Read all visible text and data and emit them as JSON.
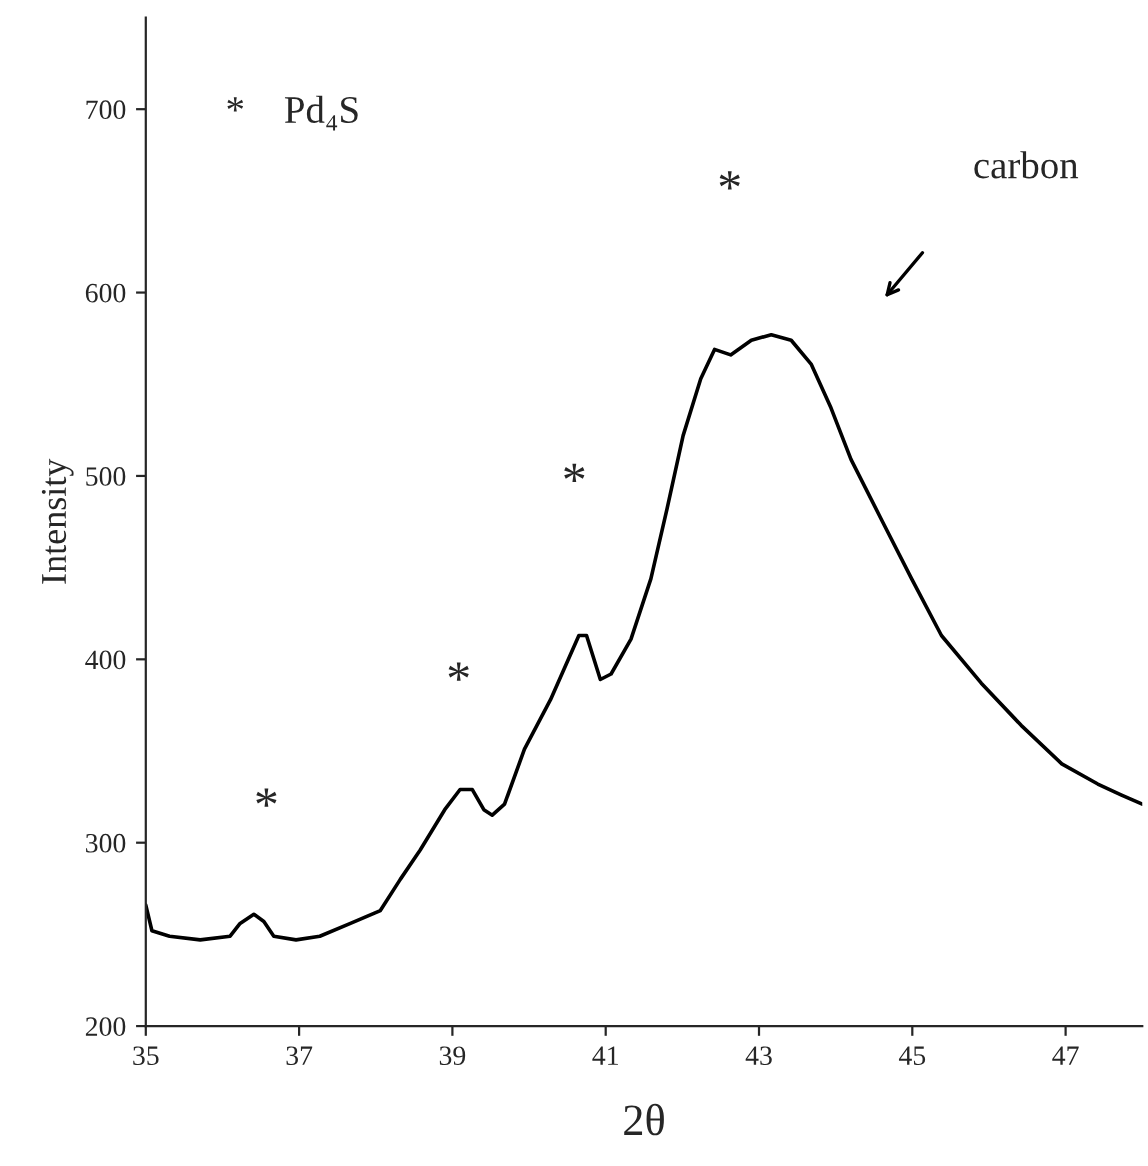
{
  "chart_data": {
    "type": "line",
    "xlabel": "2θ",
    "ylabel": "Intensity",
    "x": [
      35.0,
      35.08,
      35.31,
      35.71,
      36.1,
      36.23,
      36.41,
      36.54,
      36.67,
      36.96,
      37.27,
      37.67,
      38.06,
      38.32,
      38.58,
      38.9,
      39.1,
      39.26,
      39.41,
      39.52,
      39.68,
      39.94,
      40.28,
      40.46,
      40.65,
      40.75,
      40.93,
      41.07,
      41.33,
      41.59,
      41.8,
      42.01,
      42.24,
      42.42,
      42.63,
      42.9,
      43.16,
      43.42,
      43.68,
      43.94,
      44.2,
      44.6,
      44.99,
      45.38,
      45.9,
      46.42,
      46.95,
      47.42,
      47.73,
      48.0
    ],
    "series": [
      {
        "color": "#000000",
        "values": [
          266,
          252,
          249,
          247,
          249,
          256,
          261,
          257,
          249,
          247,
          249,
          256,
          263,
          280,
          296,
          318,
          329,
          329,
          318,
          315,
          321,
          351,
          378,
          395,
          413,
          413,
          389,
          392,
          411,
          444,
          482,
          522,
          553,
          569,
          566,
          574,
          577,
          574,
          561,
          537,
          509,
          476,
          444,
          413,
          387,
          364,
          343,
          332,
          326,
          321
        ]
      }
    ],
    "xlim": [
      35,
      48
    ],
    "ylim": [
      200,
      750
    ],
    "xticks": [
      35,
      37,
      39,
      41,
      43,
      45,
      47
    ],
    "yticks": [
      200,
      300,
      400,
      500,
      600,
      700
    ],
    "grid": false,
    "marker": "none",
    "line_style": "solid",
    "annotations": [
      "*",
      "*",
      "*",
      "*",
      "*    Pd₄S",
      "carbon"
    ]
  }
}
